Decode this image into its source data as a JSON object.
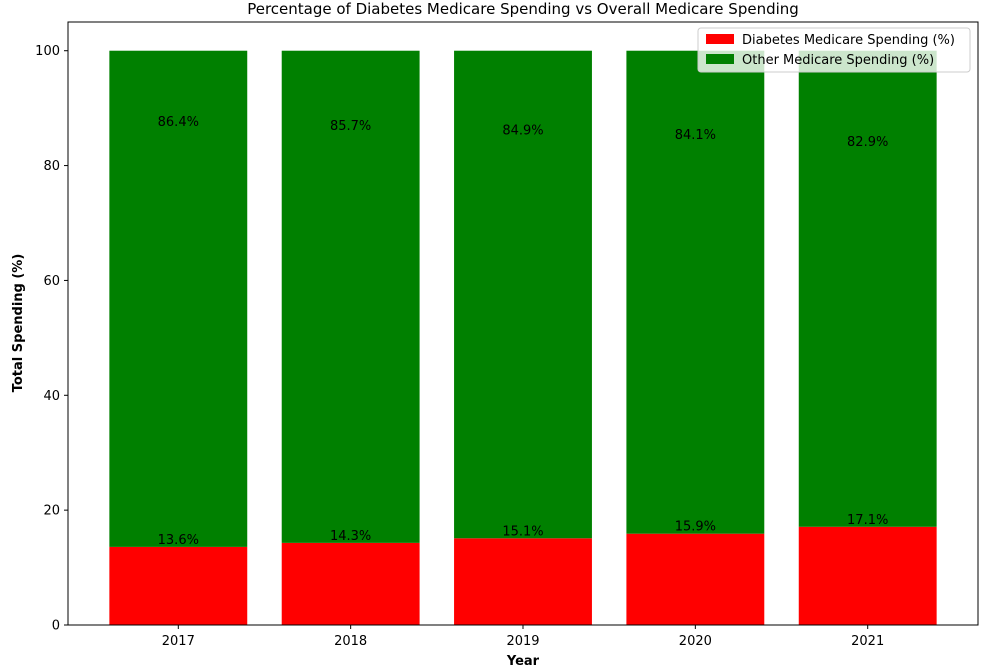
{
  "chart_data": {
    "type": "stacked_bar",
    "title": "Percentage of Diabetes Medicare Spending vs Overall Medicare Spending",
    "x_label": "Year",
    "y_label": "Total Spending (%)",
    "categories": [
      "2017",
      "2018",
      "2019",
      "2020",
      "2021"
    ],
    "series": [
      {
        "name": "Diabetes Medicare Spending (%)",
        "color": "#ff0000",
        "values": [
          13.6,
          14.3,
          15.1,
          15.9,
          17.1
        ],
        "value_labels": [
          "13.6%",
          "14.3%",
          "15.1%",
          "15.9%",
          "17.1%"
        ]
      },
      {
        "name": "Other Medicare Spending (%)",
        "color": "#008000",
        "values": [
          86.4,
          85.7,
          84.9,
          84.1,
          82.9
        ],
        "value_labels": [
          "86.4%",
          "85.7%",
          "84.9%",
          "84.1%",
          "82.9%"
        ]
      }
    ],
    "ylim": [
      0,
      105
    ],
    "yticks": [
      0,
      20,
      40,
      60,
      80,
      100
    ],
    "legend": "upper right"
  }
}
